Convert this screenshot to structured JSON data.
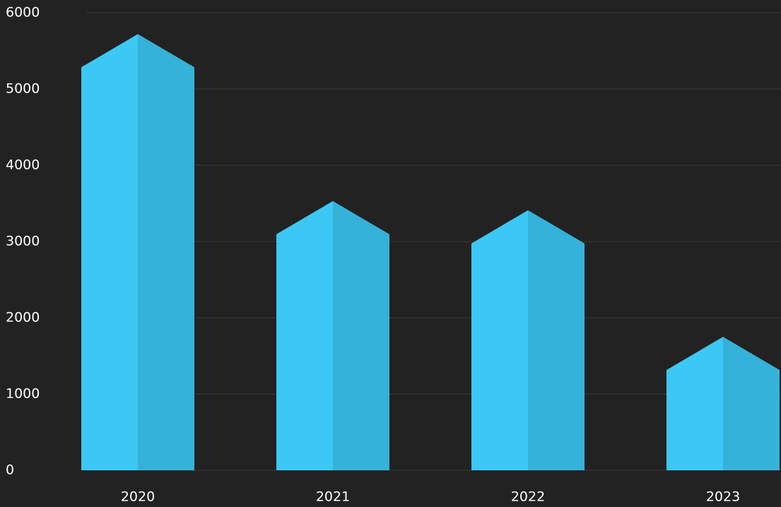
{
  "chart_data": {
    "type": "bar",
    "categories": [
      "2020",
      "2021",
      "2022",
      "2023"
    ],
    "values": [
      5720,
      3530,
      3410,
      1750
    ],
    "color": "#3cc8f5",
    "shade_color": "#35b2d9",
    "ylim": [
      0,
      6000
    ],
    "yticks": [
      0,
      1000,
      2000,
      3000,
      4000,
      5000,
      6000
    ],
    "grid": true
  }
}
